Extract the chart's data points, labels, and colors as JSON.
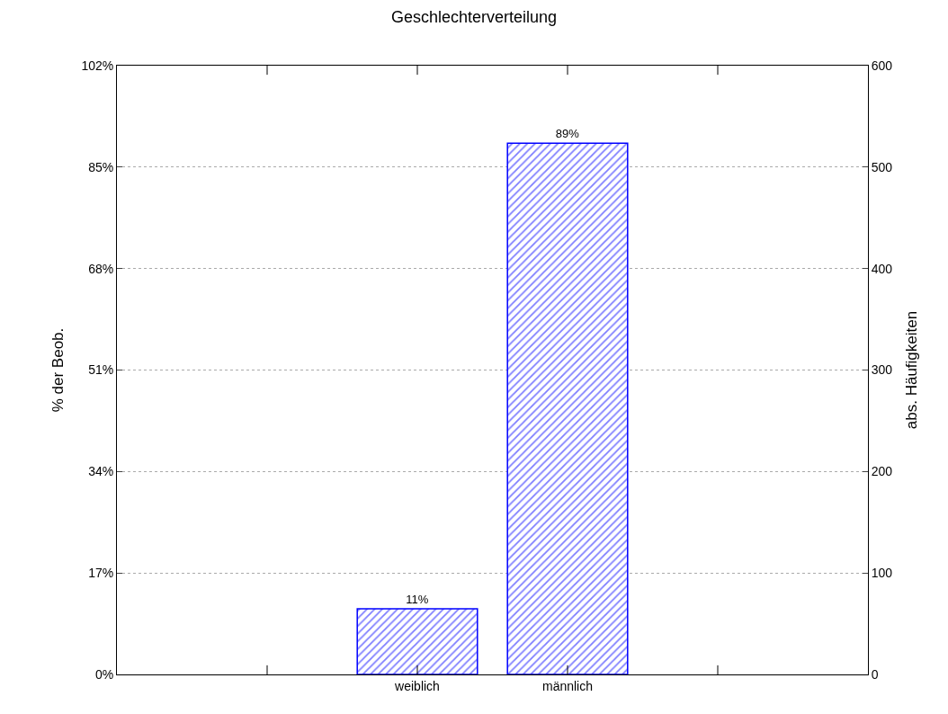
{
  "chart_data": {
    "type": "bar",
    "title": "Geschlechterverteilung",
    "ylabel": "% der Beob.",
    "y2label": "abs. Häufigkeiten",
    "categories": [
      null,
      "weiblich",
      "männlich",
      null
    ],
    "series": [
      {
        "color": "#0000ff",
        "values": [
          null,
          11,
          89,
          null
        ],
        "value_labels": [
          null,
          "11%",
          "89%",
          null
        ]
      }
    ],
    "ylim": [
      0,
      102
    ],
    "yticks": [
      {
        "value": 0,
        "label": "0%"
      },
      {
        "value": 17,
        "label": "17%"
      },
      {
        "value": 34,
        "label": "34%"
      },
      {
        "value": 51,
        "label": "51%"
      },
      {
        "value": 68,
        "label": "68%"
      },
      {
        "value": 85,
        "label": "85%"
      },
      {
        "value": 102,
        "label": "102%"
      }
    ],
    "y2lim": [
      0,
      600
    ],
    "y2ticks": [
      0,
      100,
      200,
      300,
      400,
      500,
      600
    ],
    "grid": "y"
  }
}
